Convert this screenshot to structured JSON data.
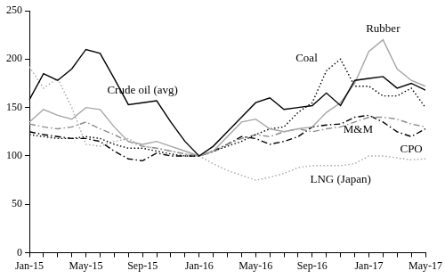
{
  "chart_data": {
    "type": "line",
    "categories": [
      "Jan-15",
      null,
      null,
      null,
      "May-15",
      null,
      null,
      null,
      "Sep-15",
      null,
      null,
      null,
      "Jan-16",
      null,
      null,
      null,
      "May-16",
      null,
      null,
      null,
      "Sep-16",
      null,
      null,
      null,
      "Jan-17",
      null,
      null,
      null,
      "May-17"
    ],
    "series": [
      {
        "name": "Crude oil (avg)",
        "color": "#000000",
        "line_style": "solid",
        "values": [
          158,
          185,
          178,
          190,
          210,
          206,
          180,
          153,
          155,
          157,
          135,
          115,
          100,
          110,
          125,
          140,
          155,
          160,
          148,
          150,
          152,
          165,
          152,
          178,
          180,
          182,
          170,
          175,
          168
        ]
      },
      {
        "name": "Rubber",
        "color": "#a6a6a6",
        "line_style": "solid",
        "values": [
          135,
          148,
          142,
          138,
          150,
          148,
          130,
          115,
          112,
          115,
          110,
          105,
          100,
          105,
          120,
          135,
          138,
          128,
          125,
          128,
          130,
          145,
          155,
          175,
          208,
          220,
          190,
          178,
          172
        ]
      },
      {
        "name": "Coal",
        "color": "#000000",
        "line_style": "dotted",
        "values": [
          122,
          120,
          118,
          118,
          120,
          118,
          112,
          108,
          108,
          105,
          102,
          100,
          100,
          105,
          110,
          115,
          122,
          128,
          130,
          145,
          155,
          188,
          200,
          172,
          172,
          162,
          162,
          170,
          150
        ]
      },
      {
        "name": "M&M",
        "color": "#8c8c8c",
        "line_style": "dashdot",
        "values": [
          133,
          130,
          128,
          130,
          135,
          128,
          122,
          115,
          110,
          108,
          105,
          102,
          100,
          104,
          112,
          118,
          122,
          120,
          125,
          128,
          125,
          128,
          130,
          135,
          140,
          140,
          138,
          133,
          130
        ]
      },
      {
        "name": "CPO",
        "color": "#000000",
        "line_style": "dashdot",
        "values": [
          125,
          122,
          120,
          118,
          118,
          115,
          105,
          97,
          95,
          103,
          100,
          100,
          100,
          105,
          112,
          120,
          118,
          112,
          115,
          120,
          130,
          132,
          133,
          140,
          142,
          135,
          125,
          120,
          128
        ]
      },
      {
        "name": "LNG (Japan)",
        "color": "#a6a6a6",
        "line_style": "dotted",
        "values": [
          192,
          170,
          180,
          150,
          112,
          110,
          115,
          118,
          110,
          108,
          105,
          102,
          100,
          92,
          85,
          80,
          75,
          78,
          82,
          88,
          90,
          90,
          90,
          92,
          100,
          100,
          98,
          96,
          97
        ]
      }
    ],
    "ylim": [
      0,
      250
    ],
    "yticks": [
      0,
      50,
      100,
      150,
      200,
      250
    ],
    "grid": false
  }
}
